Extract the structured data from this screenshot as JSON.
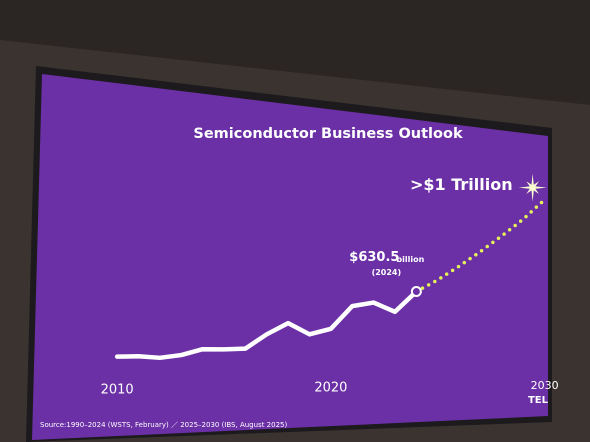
{
  "chart_data": {
    "type": "line",
    "title": "Semiconductor Business Outlook",
    "x": [
      2010,
      2011,
      2012,
      2013,
      2014,
      2015,
      2016,
      2017,
      2018,
      2019,
      2020,
      2021,
      2022,
      2023,
      2024,
      2025,
      2026,
      2027,
      2028,
      2029,
      2030
    ],
    "series": [
      {
        "color": "#ffffff",
        "style": "solid",
        "values": [
          298,
          300,
          292,
          306,
          336,
          335,
          339,
          412,
          469,
          412,
          440,
          556,
          574,
          527,
          630.5,
          null,
          null,
          null,
          null,
          null,
          null
        ],
        "value_labels": [
          null,
          null,
          null,
          null,
          null,
          null,
          null,
          null,
          null,
          null,
          null,
          null,
          null,
          null,
          "$630.5",
          null,
          null,
          null,
          null,
          null,
          null
        ]
      },
      {
        "color": "#e6f25a",
        "style": "dotted",
        "values": [
          null,
          null,
          null,
          null,
          null,
          null,
          null,
          null,
          null,
          null,
          null,
          null,
          null,
          null,
          630.5,
          690,
          760,
          835,
          915,
          1000,
          1100
        ],
        "value_labels": [
          null,
          null,
          null,
          null,
          null,
          null,
          null,
          null,
          null,
          null,
          null,
          null,
          null,
          null,
          null,
          null,
          null,
          null,
          null,
          null,
          ">$1 Trillion"
        ]
      }
    ],
    "annotations": [
      "billion",
      "(2024)"
    ],
    "xlim": [
      2007,
      2031
    ],
    "xticks": [
      2010,
      2020,
      2030
    ],
    "ylim": [
      0,
      1200
    ],
    "source": "Source:1990–2024 (WSTS, February) ／ 2025–2030 (IBS, August 2025)",
    "logo": "TEL"
  }
}
